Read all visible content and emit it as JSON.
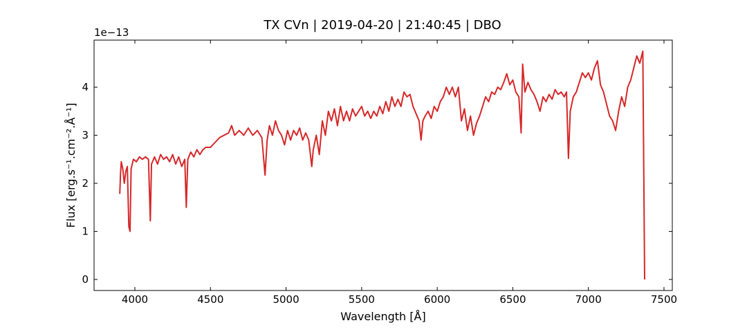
{
  "chart_data": {
    "type": "line",
    "title": "TX CVn | 2019-04-20 | 21:40:45 | DBO",
    "xlabel": "Wavelength [Å]",
    "ylabel": "Flux [erg.s⁻¹.cm⁻².Å⁻¹]",
    "y_offset_label": "1e−13",
    "color": "#d62728",
    "x": [
      3900,
      3905,
      3910,
      3920,
      3930,
      3940,
      3950,
      3960,
      3968,
      3975,
      3990,
      4010,
      4030,
      4050,
      4070,
      4090,
      4102,
      4110,
      4130,
      4150,
      4170,
      4190,
      4210,
      4230,
      4250,
      4270,
      4290,
      4310,
      4330,
      4340,
      4350,
      4370,
      4390,
      4410,
      4430,
      4450,
      4470,
      4500,
      4530,
      4560,
      4590,
      4620,
      4640,
      4660,
      4690,
      4720,
      4750,
      4780,
      4810,
      4840,
      4861,
      4875,
      4890,
      4910,
      4930,
      4950,
      4970,
      4990,
      5010,
      5030,
      5050,
      5070,
      5090,
      5110,
      5130,
      5150,
      5170,
      5180,
      5200,
      5220,
      5240,
      5260,
      5280,
      5300,
      5320,
      5340,
      5360,
      5380,
      5400,
      5420,
      5440,
      5460,
      5480,
      5500,
      5520,
      5540,
      5560,
      5580,
      5600,
      5620,
      5640,
      5660,
      5680,
      5700,
      5720,
      5740,
      5760,
      5780,
      5800,
      5820,
      5840,
      5860,
      5880,
      5893,
      5905,
      5920,
      5940,
      5960,
      5980,
      6000,
      6020,
      6040,
      6060,
      6080,
      6100,
      6120,
      6140,
      6160,
      6180,
      6200,
      6220,
      6240,
      6260,
      6280,
      6300,
      6320,
      6340,
      6360,
      6380,
      6400,
      6420,
      6440,
      6460,
      6480,
      6500,
      6520,
      6540,
      6555,
      6565,
      6580,
      6600,
      6620,
      6640,
      6660,
      6680,
      6700,
      6720,
      6740,
      6760,
      6780,
      6800,
      6820,
      6840,
      6855,
      6868,
      6880,
      6900,
      6920,
      6940,
      6960,
      6980,
      7000,
      7020,
      7040,
      7060,
      7080,
      7100,
      7120,
      7140,
      7160,
      7180,
      7200,
      7220,
      7240,
      7260,
      7280,
      7300,
      7320,
      7340,
      7360,
      7372
    ],
    "values": [
      1.78,
      2.2,
      2.45,
      2.3,
      2.0,
      2.25,
      2.35,
      1.1,
      1.0,
      2.3,
      2.5,
      2.45,
      2.55,
      2.5,
      2.55,
      2.5,
      1.22,
      2.4,
      2.55,
      2.4,
      2.6,
      2.5,
      2.55,
      2.45,
      2.6,
      2.4,
      2.55,
      2.35,
      2.5,
      1.5,
      2.5,
      2.65,
      2.55,
      2.7,
      2.6,
      2.7,
      2.75,
      2.75,
      2.85,
      2.95,
      3.0,
      3.05,
      3.2,
      3.0,
      3.1,
      3.0,
      3.15,
      3.0,
      3.1,
      2.95,
      2.17,
      2.9,
      3.2,
      3.0,
      3.3,
      3.1,
      3.0,
      2.8,
      3.1,
      2.9,
      3.1,
      3.0,
      3.15,
      2.9,
      3.05,
      2.9,
      2.35,
      2.7,
      3.0,
      2.6,
      3.3,
      3.0,
      3.5,
      3.3,
      3.55,
      3.2,
      3.6,
      3.3,
      3.5,
      3.3,
      3.55,
      3.4,
      3.5,
      3.6,
      3.4,
      3.5,
      3.35,
      3.5,
      3.4,
      3.6,
      3.45,
      3.7,
      3.5,
      3.8,
      3.6,
      3.75,
      3.6,
      3.9,
      3.8,
      3.85,
      3.6,
      3.45,
      3.3,
      2.9,
      3.3,
      3.4,
      3.5,
      3.35,
      3.6,
      3.5,
      3.7,
      3.8,
      4.0,
      3.85,
      4.0,
      3.8,
      4.0,
      3.3,
      3.55,
      3.1,
      3.4,
      3.0,
      3.25,
      3.4,
      3.6,
      3.8,
      3.7,
      3.9,
      3.85,
      4.0,
      3.95,
      4.1,
      4.28,
      4.05,
      4.15,
      3.9,
      3.8,
      3.05,
      4.48,
      3.9,
      4.1,
      3.95,
      3.85,
      3.7,
      3.5,
      3.8,
      3.7,
      3.85,
      3.75,
      3.95,
      3.85,
      3.9,
      3.8,
      3.9,
      2.52,
      3.5,
      3.8,
      3.9,
      4.1,
      4.3,
      4.2,
      4.3,
      4.15,
      4.4,
      4.55,
      4.05,
      3.9,
      3.65,
      3.4,
      3.3,
      3.1,
      3.5,
      3.8,
      3.6,
      4.0,
      4.15,
      4.4,
      4.65,
      4.5,
      4.75,
      0.0
    ],
    "xlim": [
      3730,
      7555
    ],
    "ylim": [
      -0.23,
      4.98
    ],
    "xticks": [
      4000,
      4500,
      5000,
      5500,
      6000,
      6500,
      7000,
      7500
    ],
    "yticks": [
      0,
      1,
      2,
      3,
      4
    ]
  }
}
